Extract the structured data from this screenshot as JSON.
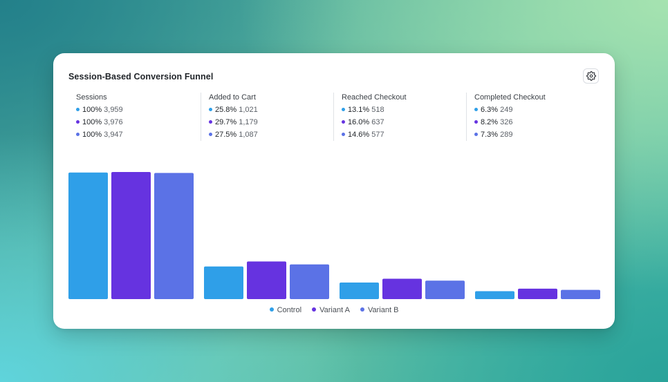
{
  "card": {
    "title": "Session-Based Conversion Funnel"
  },
  "settings": {
    "icon": "gear-icon"
  },
  "colors": {
    "Control": "#2f9fe8",
    "Variant A": "#6633e0",
    "Variant B": "#5b72e6"
  },
  "stages": [
    {
      "label": "Sessions",
      "rows": [
        {
          "series": "Control",
          "pct": "100%",
          "count": "3,959"
        },
        {
          "series": "Variant A",
          "pct": "100%",
          "count": "3,976"
        },
        {
          "series": "Variant B",
          "pct": "100%",
          "count": "3,947"
        }
      ]
    },
    {
      "label": "Added to Cart",
      "rows": [
        {
          "series": "Control",
          "pct": "25.8%",
          "count": "1,021"
        },
        {
          "series": "Variant A",
          "pct": "29.7%",
          "count": "1,179"
        },
        {
          "series": "Variant B",
          "pct": "27.5%",
          "count": "1,087"
        }
      ]
    },
    {
      "label": "Reached Checkout",
      "rows": [
        {
          "series": "Control",
          "pct": "13.1%",
          "count": "518"
        },
        {
          "series": "Variant A",
          "pct": "16.0%",
          "count": "637"
        },
        {
          "series": "Variant B",
          "pct": "14.6%",
          "count": "577"
        }
      ]
    },
    {
      "label": "Completed Checkout",
      "rows": [
        {
          "series": "Control",
          "pct": "6.3%",
          "count": "249"
        },
        {
          "series": "Variant A",
          "pct": "8.2%",
          "count": "326"
        },
        {
          "series": "Variant B",
          "pct": "7.3%",
          "count": "289"
        }
      ]
    }
  ],
  "chart_data": {
    "type": "bar",
    "title": "Session-Based Conversion Funnel",
    "categories": [
      "Sessions",
      "Added to Cart",
      "Reached Checkout",
      "Completed Checkout"
    ],
    "series": [
      {
        "name": "Control",
        "values": [
          3959,
          1021,
          518,
          249
        ]
      },
      {
        "name": "Variant A",
        "values": [
          3976,
          1179,
          637,
          326
        ]
      },
      {
        "name": "Variant B",
        "values": [
          3947,
          1087,
          577,
          289
        ]
      }
    ],
    "grid": false,
    "legend": "bottom-center"
  },
  "legend": [
    "Control",
    "Variant A",
    "Variant B"
  ]
}
